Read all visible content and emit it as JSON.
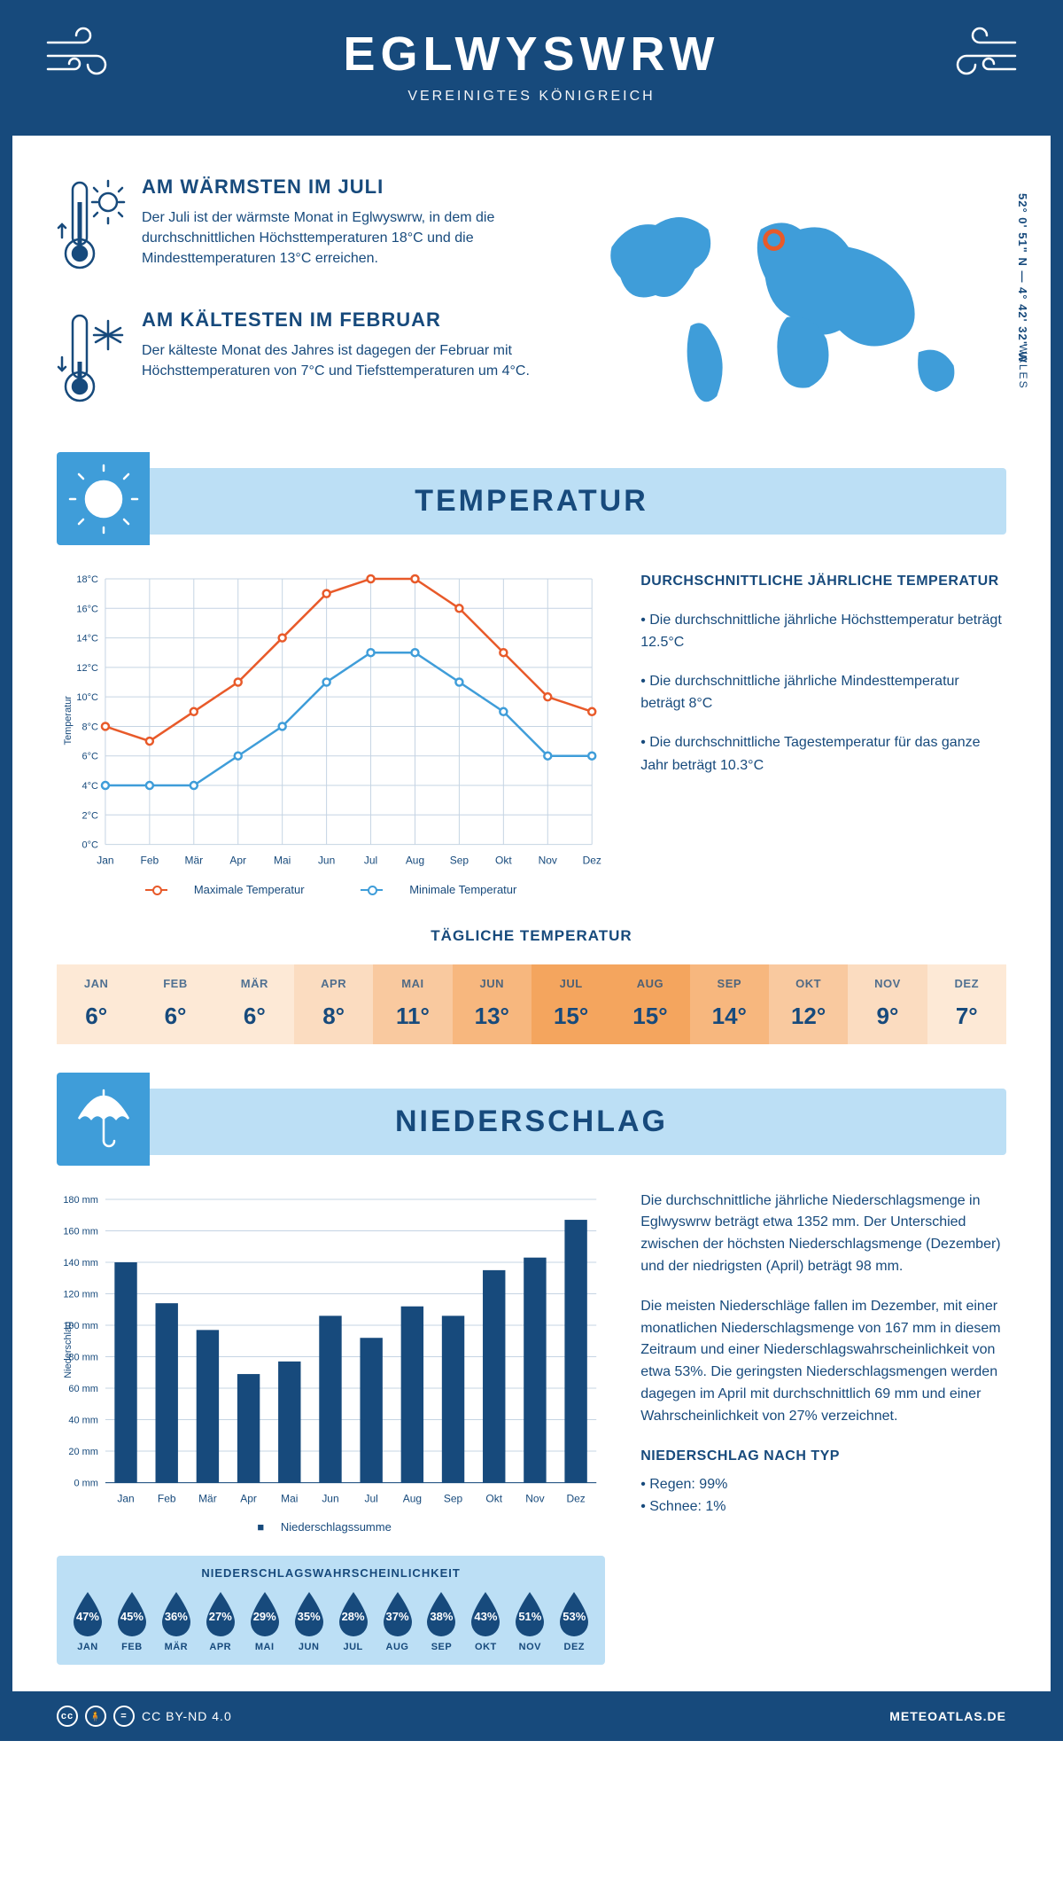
{
  "header": {
    "title": "EGLWYSWRW",
    "subtitle": "VEREINIGTES KÖNIGREICH"
  },
  "coords": "52° 0' 51\" N — 4° 42' 32\" W",
  "region": "WALES",
  "warmest": {
    "title": "AM WÄRMSTEN IM JULI",
    "text": "Der Juli ist der wärmste Monat in Eglwyswrw, in dem die durchschnittlichen Höchsttemperaturen 18°C und die Mindesttemperaturen 13°C erreichen."
  },
  "coldest": {
    "title": "AM KÄLTESTEN IM FEBRUAR",
    "text": "Der kälteste Monat des Jahres ist dagegen der Februar mit Höchsttemperaturen von 7°C und Tiefsttemperaturen um 4°C."
  },
  "temp_section": {
    "title": "TEMPERATUR"
  },
  "temp_chart": {
    "months": [
      "Jan",
      "Feb",
      "Mär",
      "Apr",
      "Mai",
      "Jun",
      "Jul",
      "Aug",
      "Sep",
      "Okt",
      "Nov",
      "Dez"
    ],
    "max": [
      8,
      7,
      9,
      11,
      14,
      17,
      18,
      18,
      16,
      13,
      10,
      9
    ],
    "min": [
      4,
      4,
      4,
      6,
      8,
      11,
      13,
      13,
      11,
      9,
      6,
      6
    ],
    "ymin": 0,
    "ymax": 18,
    "ystep": 2,
    "max_color": "#e85a2a",
    "min_color": "#3f9dd9",
    "grid_color": "#c5d4e3",
    "ylabel": "Temperatur",
    "legend_max": "Maximale Temperatur",
    "legend_min": "Minimale Temperatur"
  },
  "temp_info": {
    "title": "DURCHSCHNITTLICHE JÄHRLICHE TEMPERATUR",
    "b1": "• Die durchschnittliche jährliche Höchsttemperatur beträgt 12.5°C",
    "b2": "• Die durchschnittliche jährliche Mindesttemperatur beträgt 8°C",
    "b3": "• Die durchschnittliche Tagestemperatur für das ganze Jahr beträgt 10.3°C"
  },
  "daily_temp": {
    "title": "TÄGLICHE TEMPERATUR",
    "months": [
      "JAN",
      "FEB",
      "MÄR",
      "APR",
      "MAI",
      "JUN",
      "JUL",
      "AUG",
      "SEP",
      "OKT",
      "NOV",
      "DEZ"
    ],
    "values": [
      "6°",
      "6°",
      "6°",
      "8°",
      "11°",
      "13°",
      "15°",
      "15°",
      "14°",
      "12°",
      "9°",
      "7°"
    ],
    "colors": [
      "#fde9d6",
      "#fde9d6",
      "#fde9d6",
      "#fbdcc0",
      "#f9c99f",
      "#f7b77e",
      "#f4a55e",
      "#f4a55e",
      "#f7b77e",
      "#f9c99f",
      "#fbdcc0",
      "#fde9d6"
    ]
  },
  "precip_section": {
    "title": "NIEDERSCHLAG"
  },
  "precip_chart": {
    "months": [
      "Jan",
      "Feb",
      "Mär",
      "Apr",
      "Mai",
      "Jun",
      "Jul",
      "Aug",
      "Sep",
      "Okt",
      "Nov",
      "Dez"
    ],
    "values": [
      140,
      114,
      97,
      69,
      77,
      106,
      92,
      112,
      106,
      135,
      143,
      167
    ],
    "ymin": 0,
    "ymax": 180,
    "ystep": 20,
    "bar_color": "#174a7c",
    "grid_color": "#c5d4e3",
    "ylabel": "Niederschlag",
    "legend": "Niederschlagssumme"
  },
  "precip_text": {
    "p1": "Die durchschnittliche jährliche Niederschlagsmenge in Eglwyswrw beträgt etwa 1352 mm. Der Unterschied zwischen der höchsten Niederschlagsmenge (Dezember) und der niedrigsten (April) beträgt 98 mm.",
    "p2": "Die meisten Niederschläge fallen im Dezember, mit einer monatlichen Niederschlagsmenge von 167 mm in diesem Zeitraum und einer Niederschlagswahrscheinlichkeit von etwa 53%. Die geringsten Niederschlagsmengen werden dagegen im April mit durchschnittlich 69 mm und einer Wahrscheinlichkeit von 27% verzeichnet.",
    "type_title": "NIEDERSCHLAG NACH TYP",
    "type1": "• Regen: 99%",
    "type2": "• Schnee: 1%"
  },
  "prob": {
    "title": "NIEDERSCHLAGSWAHRSCHEINLICHKEIT",
    "months": [
      "JAN",
      "FEB",
      "MÄR",
      "APR",
      "MAI",
      "JUN",
      "JUL",
      "AUG",
      "SEP",
      "OKT",
      "NOV",
      "DEZ"
    ],
    "values": [
      "47%",
      "45%",
      "36%",
      "27%",
      "29%",
      "35%",
      "28%",
      "37%",
      "38%",
      "43%",
      "51%",
      "53%"
    ],
    "drop_color": "#174a7c"
  },
  "footer": {
    "license": "CC BY-ND 4.0",
    "site": "METEOATLAS.DE"
  },
  "colors": {
    "primary": "#174a7c",
    "accent": "#3f9dd9",
    "light": "#bcdff5"
  }
}
